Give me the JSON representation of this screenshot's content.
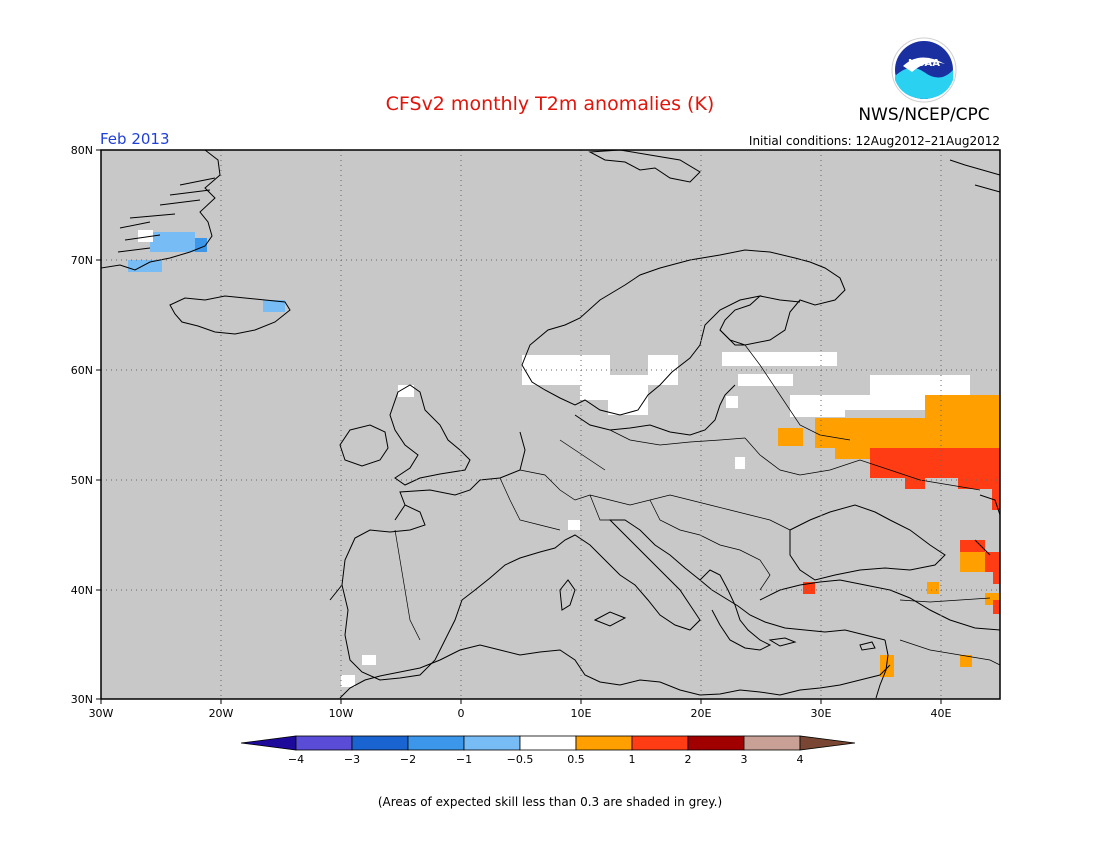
{
  "header": {
    "title": "CFSv2 monthly T2m anomalies (K)",
    "month": "Feb 2013",
    "initial_conditions": "Initial conditions: 12Aug2012–21Aug2012",
    "agency": "NWS/NCEP/CPC",
    "logo_text": "NOAA"
  },
  "map": {
    "lat_labels": [
      "80N",
      "70N",
      "60N",
      "50N",
      "40N",
      "30N"
    ],
    "lon_labels": [
      "30W",
      "20W",
      "10W",
      "0",
      "10E",
      "20E",
      "30E",
      "40E"
    ],
    "background_color": "#c8c8c8",
    "extent": {
      "lon": [
        -30,
        45
      ],
      "lat": [
        30,
        80
      ]
    }
  },
  "colorbar": {
    "labels": [
      "−4",
      "−3",
      "−2",
      "−1",
      "−0.5",
      "0.5",
      "1",
      "2",
      "3",
      "4"
    ],
    "colors": [
      "#1e0a9a",
      "#5a4cd6",
      "#1a64d2",
      "#3c96ea",
      "#78bcf5",
      "#ffffff",
      "#ffa000",
      "#ff3c14",
      "#a00000",
      "#c8a096",
      "#784632"
    ]
  },
  "footnote": "(Areas of expected skill less than 0.3 are shaded in grey.)"
}
